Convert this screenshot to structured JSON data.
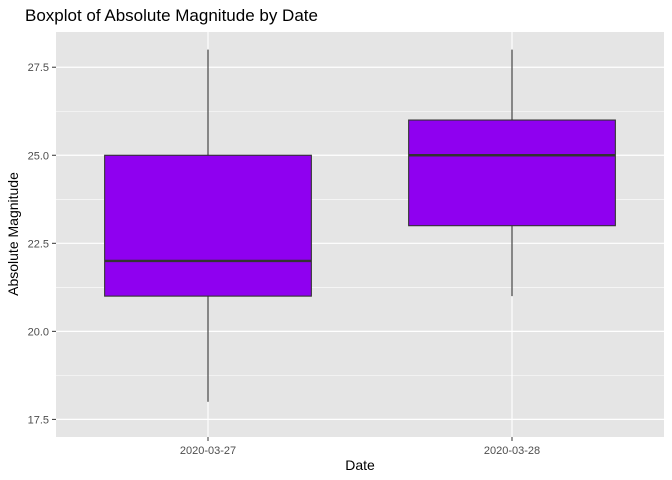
{
  "chart_data": {
    "type": "boxplot",
    "title": "Boxplot of Absolute Magnitude by Date",
    "xlabel": "Date",
    "ylabel": "Absolute Magnitude",
    "categories": [
      "2020-03-27",
      "2020-03-28"
    ],
    "boxes": [
      {
        "category": "2020-03-27",
        "min": 18.0,
        "q1": 21.0,
        "median": 22.0,
        "q3": 25.0,
        "max": 28.0
      },
      {
        "category": "2020-03-28",
        "min": 21.0,
        "q1": 23.0,
        "median": 25.0,
        "q3": 26.0,
        "max": 28.0
      }
    ],
    "ylim": [
      17.0,
      28.5
    ],
    "yticks": [
      17.5,
      20.0,
      22.5,
      25.0,
      27.5
    ],
    "ytick_labels": [
      "17.5",
      "20.0",
      "22.5",
      "25.0",
      "27.5"
    ],
    "grid": true,
    "colors": {
      "panel_background": "#e5e5e5",
      "grid": "#ffffff",
      "box_fill": "#8f00f0",
      "box_stroke": "#333333"
    }
  }
}
